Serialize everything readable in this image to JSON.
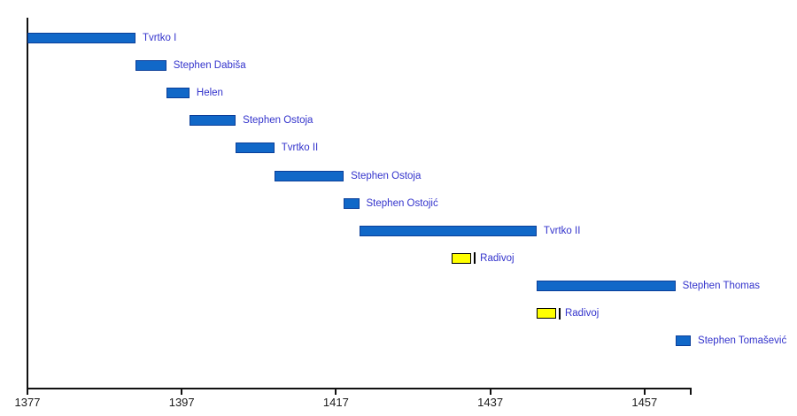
{
  "page": {
    "background": "#FFFFFF"
  },
  "chart_data": {
    "type": "bar",
    "variant": "horizontal-timeline-gantt",
    "title": "",
    "xlabel": "",
    "ylabel": "",
    "grid": false,
    "legend": false,
    "x_axis": {
      "min": 1377,
      "max": 1463,
      "tick_years": [
        1377,
        1397,
        1417,
        1437,
        1457
      ],
      "tick_labels": [
        "1377",
        "1397",
        "1417",
        "1437",
        "1457"
      ],
      "axis_end_year": 1463
    },
    "rows": [
      {
        "name": "Tvrtko I",
        "start_year": 1377,
        "end_year": 1391,
        "color": "blue",
        "end_marker": false
      },
      {
        "name": "Stephen Dabiša",
        "start_year": 1391,
        "end_year": 1395,
        "color": "blue",
        "end_marker": false
      },
      {
        "name": "Helen",
        "start_year": 1395,
        "end_year": 1398,
        "color": "blue",
        "end_marker": false
      },
      {
        "name": "Stephen Ostoja",
        "start_year": 1398,
        "end_year": 1404,
        "color": "blue",
        "end_marker": false
      },
      {
        "name": "Tvrtko II",
        "start_year": 1404,
        "end_year": 1409,
        "color": "blue",
        "end_marker": false
      },
      {
        "name": "Stephen Ostoja",
        "start_year": 1409,
        "end_year": 1418,
        "color": "blue",
        "end_marker": false
      },
      {
        "name": "Stephen Ostojić",
        "start_year": 1418,
        "end_year": 1420,
        "color": "blue",
        "end_marker": false
      },
      {
        "name": "Tvrtko II",
        "start_year": 1420,
        "end_year": 1443,
        "color": "blue",
        "end_marker": false
      },
      {
        "name": "Radivoj",
        "start_year": 1432,
        "end_year": 1435,
        "color": "yellow",
        "end_marker": true
      },
      {
        "name": "Stephen Thomas",
        "start_year": 1443,
        "end_year": 1461,
        "color": "blue",
        "end_marker": false
      },
      {
        "name": "Radivoj",
        "start_year": 1443,
        "end_year": 1446,
        "color": "yellow",
        "end_marker": true
      },
      {
        "name": "Stephen Tomašević",
        "start_year": 1461,
        "end_year": 1463,
        "color": "blue",
        "end_marker": false
      }
    ],
    "colors": {
      "bar_blue": "#1168C8",
      "bar_blue_border": "#0A3E99",
      "bar_yellow": "#FFFF00",
      "bar_yellow_border": "#000000",
      "label_text": "#3333CC",
      "axis": "#111111",
      "tick_text": "#1A1A1A",
      "background": "#FFFFFF"
    }
  }
}
